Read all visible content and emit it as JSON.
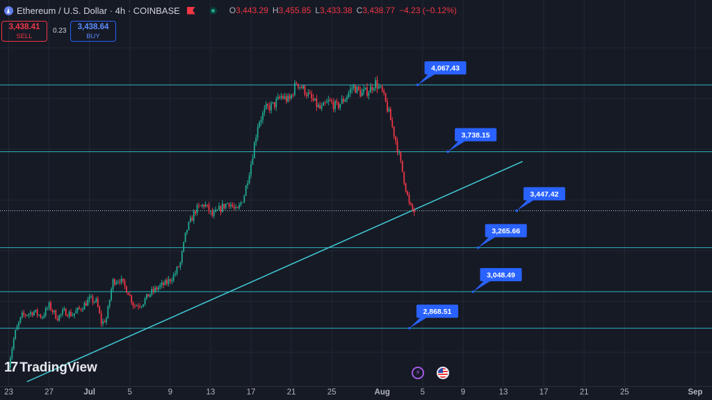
{
  "header": {
    "symbol": "Ethereum / U.S. Dollar · 4h · COINBASE",
    "ohlc": [
      {
        "k": "O",
        "v": "3,443.29"
      },
      {
        "k": "H",
        "v": "3,455.85"
      },
      {
        "k": "L",
        "v": "3,433.38"
      },
      {
        "k": "C",
        "v": "3,438.77"
      },
      {
        "k": "",
        "v": "−4.23 (−0.12%)"
      }
    ]
  },
  "trade": {
    "sell_price": "3,438.41",
    "sell_label": "SELL",
    "spread": "0.23",
    "buy_price": "3,438.64",
    "buy_label": "BUY"
  },
  "logo_text": "TradingView",
  "colors": {
    "background": "#161a25",
    "grid": "#242835",
    "up": "#22ab94",
    "down": "#f23645",
    "level_line": "#2fb5c0",
    "label_bg": "#2962ff"
  },
  "chart_data": {
    "type": "candlestick",
    "ylim": [
      2580,
      4400
    ],
    "x_ticks": [
      {
        "label": "23",
        "day": 0
      },
      {
        "label": "27",
        "day": 4
      },
      {
        "label": "Jul",
        "day": 8
      },
      {
        "label": "5",
        "day": 12
      },
      {
        "label": "9",
        "day": 16
      },
      {
        "label": "13",
        "day": 20
      },
      {
        "label": "17",
        "day": 24
      },
      {
        "label": "21",
        "day": 28
      },
      {
        "label": "25",
        "day": 32
      },
      {
        "label": "Aug",
        "day": 37
      },
      {
        "label": "5",
        "day": 41
      },
      {
        "label": "9",
        "day": 45
      },
      {
        "label": "13",
        "day": 49
      },
      {
        "label": "17",
        "day": 53
      },
      {
        "label": "21",
        "day": 57
      },
      {
        "label": "25",
        "day": 61
      },
      {
        "label": "Sep",
        "day": 68
      }
    ],
    "last_day": 40.2,
    "levels": [
      {
        "value": 4067.43,
        "label": "4,067.43",
        "style": "solid",
        "anchor_day": 40.5
      },
      {
        "value": 3738.15,
        "label": "3,738.15",
        "style": "solid",
        "anchor_day": 43.5
      },
      {
        "value": 3447.42,
        "label": "3,447.42",
        "style": "dotted",
        "anchor_day": 50.3
      },
      {
        "value": 3265.66,
        "label": "3,265.66",
        "style": "solid",
        "anchor_day": 46.5
      },
      {
        "value": 3048.49,
        "label": "3,048.49",
        "style": "solid",
        "anchor_day": 46.0
      },
      {
        "value": 2868.51,
        "label": "2,868.51",
        "style": "solid",
        "anchor_day": 39.7
      }
    ],
    "trendline": {
      "start": {
        "day": 1.8,
        "price": 2605
      },
      "end": {
        "day": 50.9,
        "price": 3690
      }
    },
    "price_path": [
      {
        "day": 0.0,
        "price": 2690
      },
      {
        "day": 0.6,
        "price": 2840
      },
      {
        "day": 1.3,
        "price": 2930
      },
      {
        "day": 2.5,
        "price": 2950
      },
      {
        "day": 3.3,
        "price": 2925
      },
      {
        "day": 4.0,
        "price": 2980
      },
      {
        "day": 4.8,
        "price": 2920
      },
      {
        "day": 5.5,
        "price": 2950
      },
      {
        "day": 6.3,
        "price": 2935
      },
      {
        "day": 7.2,
        "price": 2970
      },
      {
        "day": 8.0,
        "price": 3010
      },
      {
        "day": 8.7,
        "price": 3000
      },
      {
        "day": 9.2,
        "price": 2890
      },
      {
        "day": 9.7,
        "price": 2920
      },
      {
        "day": 10.3,
        "price": 3100
      },
      {
        "day": 11.0,
        "price": 3110
      },
      {
        "day": 11.8,
        "price": 3050
      },
      {
        "day": 12.4,
        "price": 2980
      },
      {
        "day": 13.2,
        "price": 2990
      },
      {
        "day": 14.0,
        "price": 3040
      },
      {
        "day": 14.8,
        "price": 3070
      },
      {
        "day": 15.6,
        "price": 3090
      },
      {
        "day": 16.4,
        "price": 3130
      },
      {
        "day": 17.0,
        "price": 3190
      },
      {
        "day": 17.6,
        "price": 3350
      },
      {
        "day": 18.5,
        "price": 3450
      },
      {
        "day": 19.4,
        "price": 3480
      },
      {
        "day": 20.2,
        "price": 3420
      },
      {
        "day": 21.0,
        "price": 3460
      },
      {
        "day": 21.8,
        "price": 3490
      },
      {
        "day": 22.6,
        "price": 3440
      },
      {
        "day": 23.3,
        "price": 3520
      },
      {
        "day": 24.0,
        "price": 3680
      },
      {
        "day": 24.7,
        "price": 3880
      },
      {
        "day": 25.5,
        "price": 3950
      },
      {
        "day": 26.3,
        "price": 3970
      },
      {
        "day": 27.0,
        "price": 4010
      },
      {
        "day": 27.8,
        "price": 3990
      },
      {
        "day": 28.5,
        "price": 4080
      },
      {
        "day": 29.3,
        "price": 4040
      },
      {
        "day": 30.1,
        "price": 3990
      },
      {
        "day": 30.9,
        "price": 3945
      },
      {
        "day": 31.7,
        "price": 3985
      },
      {
        "day": 32.5,
        "price": 3960
      },
      {
        "day": 33.3,
        "price": 4000
      },
      {
        "day": 34.1,
        "price": 4060
      },
      {
        "day": 34.9,
        "price": 4025
      },
      {
        "day": 35.7,
        "price": 4040
      },
      {
        "day": 36.3,
        "price": 4080
      },
      {
        "day": 37.0,
        "price": 4030
      },
      {
        "day": 37.7,
        "price": 3920
      },
      {
        "day": 38.4,
        "price": 3780
      },
      {
        "day": 39.0,
        "price": 3640
      },
      {
        "day": 39.7,
        "price": 3470
      },
      {
        "day": 40.2,
        "price": 3438.77
      }
    ],
    "candles_per_day": 6,
    "volatility": 0.006
  }
}
